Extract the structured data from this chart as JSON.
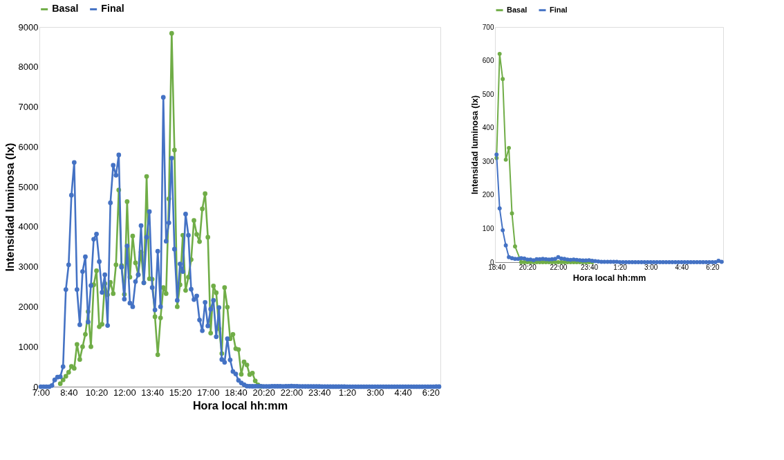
{
  "chart_data": [
    {
      "type": "line",
      "xlabel": "Hora local hh:mm",
      "ylabel": "Intensidad luminosa (lx)",
      "ylim": [
        0,
        9000
      ],
      "yticks": [
        0,
        1000,
        2000,
        3000,
        4000,
        5000,
        6000,
        7000,
        8000,
        9000
      ],
      "legend": "top",
      "marker": "circle",
      "categories": [
        "7:00",
        null,
        null,
        null,
        null,
        null,
        null,
        null,
        null,
        null,
        "8:40",
        null,
        null,
        null,
        null,
        null,
        null,
        null,
        null,
        null,
        "10:20",
        null,
        null,
        null,
        null,
        null,
        null,
        null,
        null,
        null,
        "12:00",
        null,
        null,
        null,
        null,
        null,
        null,
        null,
        null,
        null,
        "13:40",
        null,
        null,
        null,
        null,
        null,
        null,
        null,
        null,
        null,
        "15:20",
        null,
        null,
        null,
        null,
        null,
        null,
        null,
        null,
        null,
        "17:00",
        null,
        null,
        null,
        null,
        null,
        null,
        null,
        null,
        null,
        "18:40",
        null,
        null,
        null,
        null,
        null,
        null,
        null,
        null,
        null,
        "20:20",
        null,
        null,
        null,
        null,
        null,
        null,
        null,
        null,
        null,
        "22:00",
        null,
        null,
        null,
        null,
        null,
        null,
        null,
        null,
        null,
        "23:40",
        null,
        null,
        null,
        null,
        null,
        null,
        null,
        null,
        null,
        "1:20",
        null,
        null,
        null,
        null,
        null,
        null,
        null,
        null,
        null,
        "3:00",
        null,
        null,
        null,
        null,
        null,
        null,
        null,
        null,
        null,
        "4:40",
        null,
        null,
        null,
        null,
        null,
        null,
        null,
        null,
        null,
        "6:20",
        null,
        null,
        null
      ],
      "series": [
        {
          "name": "Basal",
          "color": "#70ad47",
          "values": [
            null,
            null,
            null,
            null,
            null,
            null,
            null,
            75,
            170,
            260,
            360,
            510,
            460,
            1060,
            680,
            1000,
            1310,
            1880,
            1000,
            2550,
            2900,
            1500,
            1560,
            2580,
            2300,
            2610,
            2330,
            3050,
            4920,
            3030,
            2310,
            4630,
            2740,
            3770,
            3100,
            2800,
            3370,
            2600,
            5260,
            2700,
            2690,
            1750,
            800,
            1720,
            2480,
            2330,
            4700,
            8840,
            5920,
            2000,
            2550,
            3790,
            2410,
            2740,
            3180,
            4160,
            3810,
            3630,
            4450,
            4830,
            3740,
            1340,
            2520,
            2350,
            1450,
            830,
            2480,
            1990,
            1200,
            1310,
            950,
            930,
            310,
            620,
            545,
            305,
            340,
            145,
            47,
            5,
            null,
            null,
            null,
            null,
            null,
            null,
            null,
            null,
            null,
            null,
            null,
            null,
            null,
            null,
            null,
            null,
            null,
            null,
            null,
            null,
            null,
            null,
            null,
            null,
            null,
            null,
            null,
            null,
            null,
            null,
            null,
            null,
            null,
            null,
            null,
            null,
            null,
            null,
            null,
            null,
            null,
            null,
            null,
            null,
            null,
            null,
            null,
            null,
            null,
            null,
            null,
            null,
            null,
            null,
            null,
            null,
            null,
            null,
            null,
            null,
            null,
            null,
            null,
            null
          ]
        },
        {
          "name": "Final",
          "color": "#4472c4",
          "values": [
            0,
            0,
            0,
            0,
            30,
            170,
            240,
            250,
            500,
            2430,
            3050,
            4790,
            5610,
            2430,
            1550,
            2880,
            3250,
            1620,
            2530,
            3690,
            3820,
            3130,
            2360,
            2800,
            1530,
            4600,
            5540,
            5290,
            5800,
            2990,
            2190,
            3520,
            2090,
            2000,
            2630,
            2800,
            4030,
            2600,
            3740,
            4380,
            2480,
            1920,
            3390,
            2000,
            7240,
            3640,
            4100,
            5720,
            3440,
            2160,
            3070,
            2880,
            4320,
            3790,
            2440,
            2180,
            2270,
            1670,
            1400,
            2110,
            1520,
            1940,
            2160,
            1250,
            1980,
            680,
            610,
            1200,
            670,
            380,
            320,
            160,
            95,
            50,
            15,
            12,
            10,
            10,
            12,
            11,
            8,
            8,
            6,
            9,
            9,
            10,
            9,
            8,
            9,
            10,
            15,
            11,
            10,
            8,
            7,
            8,
            7,
            6,
            5,
            5,
            6,
            4,
            3,
            2,
            1,
            1,
            1,
            1,
            1,
            1,
            0,
            0,
            0,
            0,
            0,
            0,
            0,
            0,
            0,
            0,
            0,
            0,
            0,
            0,
            0,
            0,
            0,
            0,
            0,
            0,
            0,
            0,
            0,
            0,
            0,
            0,
            0,
            0,
            0,
            0,
            0,
            0,
            4,
            1
          ]
        }
      ]
    },
    {
      "type": "line",
      "xlabel": "Hora local hh:mm",
      "ylabel": "Intensidad luminosa (lx)",
      "ylim": [
        0,
        700
      ],
      "yticks": [
        0,
        100,
        200,
        300,
        400,
        500,
        600,
        700
      ],
      "legend": "top",
      "marker": "circle",
      "categories": [
        "18:40",
        null,
        null,
        null,
        null,
        null,
        null,
        null,
        null,
        null,
        "20:20",
        null,
        null,
        null,
        null,
        null,
        null,
        null,
        null,
        null,
        "22:00",
        null,
        null,
        null,
        null,
        null,
        null,
        null,
        null,
        null,
        "23:40",
        null,
        null,
        null,
        null,
        null,
        null,
        null,
        null,
        null,
        "1:20",
        null,
        null,
        null,
        null,
        null,
        null,
        null,
        null,
        null,
        "3:00",
        null,
        null,
        null,
        null,
        null,
        null,
        null,
        null,
        null,
        "4:40",
        null,
        null,
        null,
        null,
        null,
        null,
        null,
        null,
        null,
        "6:20",
        null,
        null,
        null
      ],
      "series": [
        {
          "name": "Basal",
          "color": "#70ad47",
          "values": [
            310,
            620,
            545,
            305,
            340,
            145,
            47,
            null,
            0,
            0,
            0,
            0,
            0,
            0,
            0,
            0,
            0,
            0,
            0,
            0,
            0,
            0,
            0,
            0,
            0,
            0,
            0,
            0,
            0,
            0,
            0,
            0,
            null,
            null,
            null,
            null,
            null,
            null,
            null,
            null,
            null,
            null,
            null,
            null,
            null,
            null,
            null,
            null,
            null,
            null,
            null,
            null,
            null,
            null,
            null,
            null,
            null,
            null,
            null,
            null,
            null,
            null,
            null,
            null,
            null,
            null,
            null,
            null,
            null,
            null,
            null,
            null,
            null,
            null
          ]
        },
        {
          "name": "Final",
          "color": "#4472c4",
          "values": [
            320,
            160,
            95,
            50,
            15,
            12,
            10,
            10,
            12,
            11,
            8,
            8,
            6,
            9,
            9,
            10,
            9,
            8,
            9,
            10,
            15,
            11,
            10,
            8,
            7,
            8,
            7,
            6,
            5,
            5,
            6,
            4,
            3,
            2,
            1,
            1,
            1,
            1,
            1,
            1,
            0,
            0,
            0,
            0,
            0,
            0,
            0,
            0,
            0,
            0,
            0,
            0,
            0,
            0,
            0,
            0,
            0,
            0,
            0,
            0,
            0,
            0,
            0,
            0,
            0,
            0,
            0,
            0,
            0,
            0,
            0,
            0,
            4,
            1
          ]
        }
      ]
    }
  ]
}
